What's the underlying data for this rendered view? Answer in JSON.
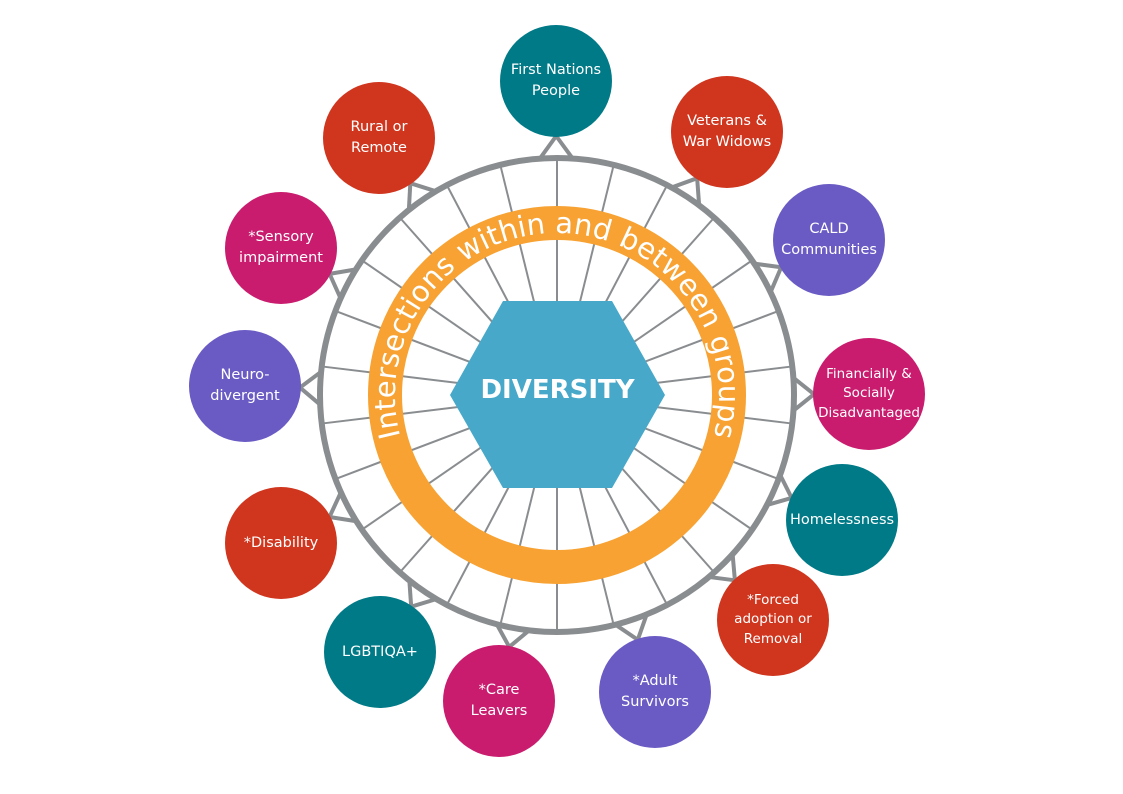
{
  "center": {
    "label": "DIVERSITY",
    "color": "#47A8C9"
  },
  "ring_text": "Intersections within and between groups",
  "colors": {
    "ring": "#8A8D90",
    "orange": "#F7A232",
    "teal": "#007A87",
    "red": "#D0351E",
    "purple": "#6A5BC4",
    "magenta": "#C91C6E"
  },
  "groups": [
    {
      "label": "First Nations\nPeople",
      "color": "teal"
    },
    {
      "label": "Veterans &\nWar Widows",
      "color": "red"
    },
    {
      "label": "CALD\nCommunities",
      "color": "purple"
    },
    {
      "label": "Financially &\nSocially\nDisadvantaged",
      "color": "magenta"
    },
    {
      "label": "Homelessness",
      "color": "teal"
    },
    {
      "label": "*Forced\nadoption or\nRemoval",
      "color": "red"
    },
    {
      "label": "*Adult\nSurvivors",
      "color": "purple"
    },
    {
      "label": "*Care\nLeavers",
      "color": "magenta"
    },
    {
      "label": "LGBTIQA+",
      "color": "teal"
    },
    {
      "label": "*Disability",
      "color": "red"
    },
    {
      "label": "Neuro-\ndivergent",
      "color": "purple"
    },
    {
      "label": "*Sensory\nimpairment",
      "color": "magenta"
    },
    {
      "label": "Rural or\nRemote",
      "color": "red"
    }
  ]
}
